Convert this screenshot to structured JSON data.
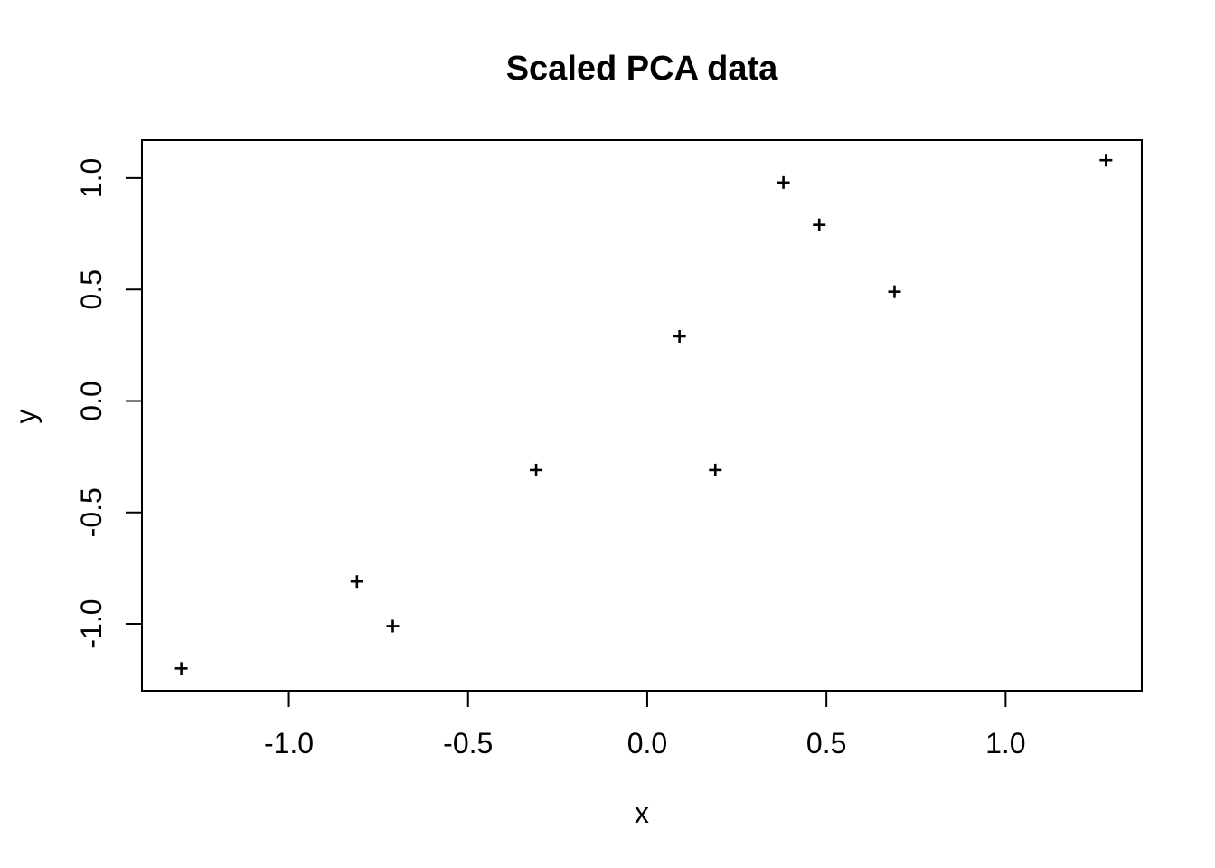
{
  "chart_data": {
    "type": "scatter",
    "title": "Scaled PCA data",
    "xlabel": "x",
    "ylabel": "y",
    "marker": "plus",
    "points": [
      {
        "x": -1.3,
        "y": -1.2
      },
      {
        "x": -0.81,
        "y": -0.81
      },
      {
        "x": -0.71,
        "y": -1.01
      },
      {
        "x": -0.31,
        "y": -0.31
      },
      {
        "x": 0.09,
        "y": 0.29
      },
      {
        "x": 0.19,
        "y": -0.31
      },
      {
        "x": 0.38,
        "y": 0.98
      },
      {
        "x": 0.48,
        "y": 0.79
      },
      {
        "x": 0.69,
        "y": 0.49
      },
      {
        "x": 1.28,
        "y": 1.08
      }
    ],
    "x_ticks": {
      "values": [
        -1.0,
        -0.5,
        0.0,
        0.5,
        1.0
      ],
      "labels": [
        "-1.0",
        "-0.5",
        "0.0",
        "0.5",
        "1.0"
      ]
    },
    "y_ticks": {
      "values": [
        -1.0,
        -0.5,
        0.0,
        0.5,
        1.0
      ],
      "labels": [
        "-1.0",
        "-0.5",
        "0.0",
        "0.5",
        "1.0"
      ]
    },
    "xlim": [
      -1.41,
      1.38
    ],
    "ylim": [
      -1.3,
      1.17
    ],
    "grid": false,
    "legend": null,
    "colors": {
      "foreground": "#000000",
      "background": "#ffffff"
    }
  }
}
